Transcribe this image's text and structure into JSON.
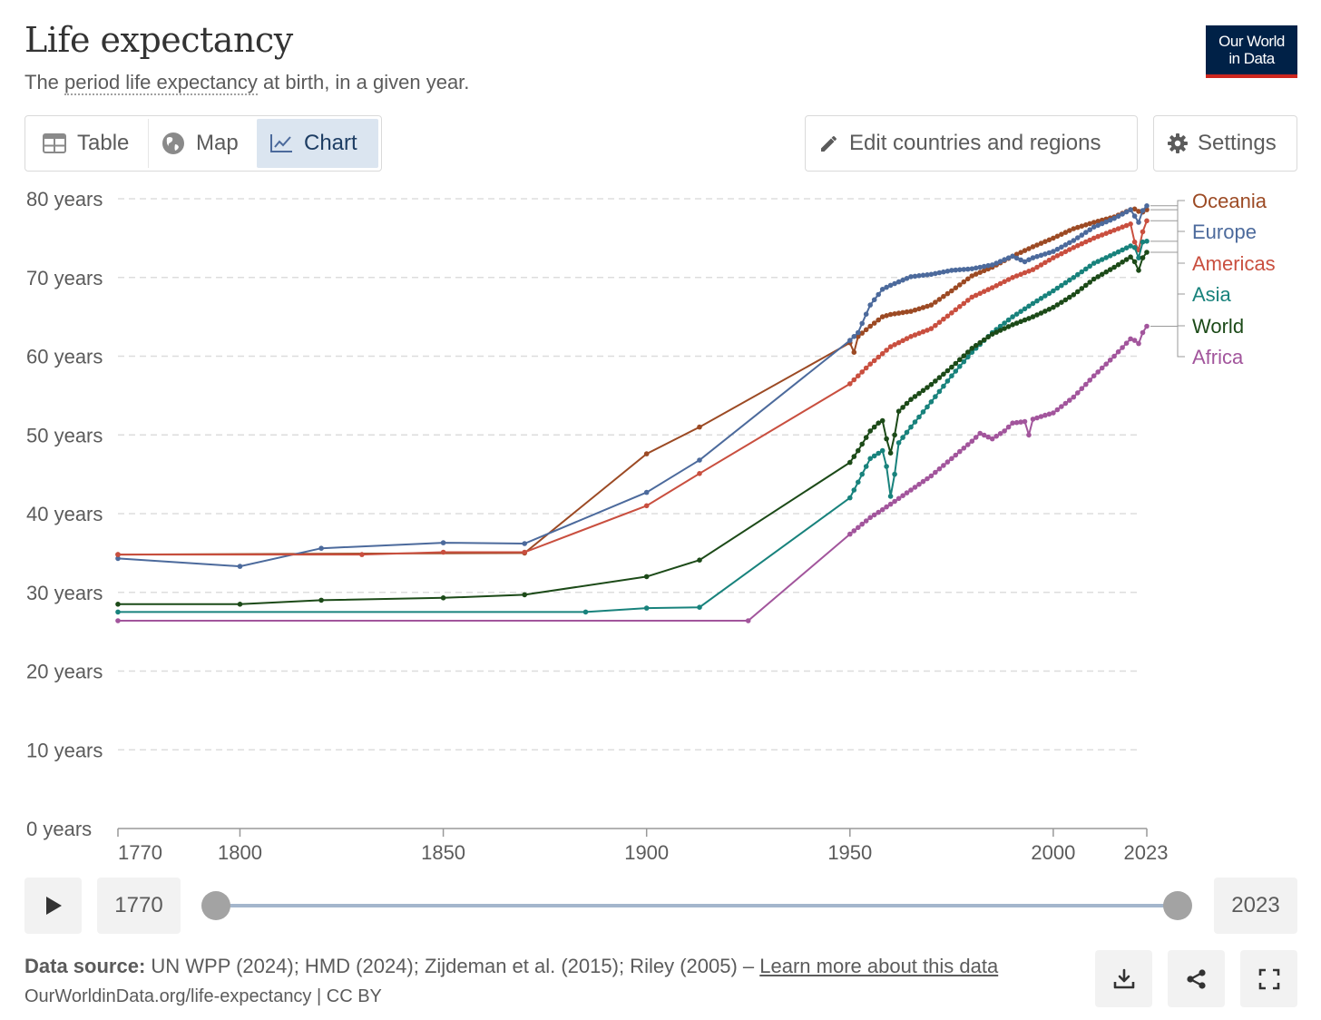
{
  "header": {
    "title": "Life expectancy",
    "subtitle_pre": "The ",
    "subtitle_link": "period life expectancy",
    "subtitle_post": " at birth, in a given year.",
    "logo_line1": "Our World",
    "logo_line2": "in Data"
  },
  "tabs": [
    {
      "label": "Table",
      "icon": "table-icon",
      "active": false
    },
    {
      "label": "Map",
      "icon": "globe-icon",
      "active": false
    },
    {
      "label": "Chart",
      "icon": "line-chart-icon",
      "active": true
    }
  ],
  "buttons": {
    "edit": "Edit countries and regions",
    "settings": "Settings"
  },
  "chart_data": {
    "type": "line",
    "title": "Life expectancy",
    "ylim": [
      0,
      80
    ],
    "xlim": [
      1770,
      2023
    ],
    "y_ticks": [
      {
        "value": 0,
        "label": "0 years"
      },
      {
        "value": 10,
        "label": "10 years"
      },
      {
        "value": 20,
        "label": "20 years"
      },
      {
        "value": 30,
        "label": "30 years"
      },
      {
        "value": 40,
        "label": "40 years"
      },
      {
        "value": 50,
        "label": "50 years"
      },
      {
        "value": 60,
        "label": "60 years"
      },
      {
        "value": 70,
        "label": "70 years"
      },
      {
        "value": 80,
        "label": "80 years"
      }
    ],
    "x_ticks": [
      {
        "value": 1770,
        "label": "1770"
      },
      {
        "value": 1800,
        "label": "1800"
      },
      {
        "value": 1850,
        "label": "1850"
      },
      {
        "value": 1900,
        "label": "1900"
      },
      {
        "value": 1950,
        "label": "1950"
      },
      {
        "value": 2000,
        "label": "2000"
      },
      {
        "value": 2023,
        "label": "2023"
      }
    ],
    "grid": "horizontal-dashed",
    "legend": "right (labels at line ends)",
    "series": [
      {
        "name": "Oceania",
        "color": "#9c4a24",
        "points": [
          [
            1770,
            34.8
          ],
          [
            1870,
            35
          ],
          [
            1900,
            47.6
          ],
          [
            1913,
            51
          ],
          [
            1950,
            61.7
          ],
          [
            1951,
            60.5
          ],
          [
            1952,
            62.5
          ],
          [
            1955,
            63.8
          ],
          [
            1958,
            65
          ],
          [
            1960,
            65.3
          ],
          [
            1965,
            65.7
          ],
          [
            1970,
            66.5
          ],
          [
            1975,
            68.3
          ],
          [
            1980,
            70.2
          ],
          [
            1985,
            71.3
          ],
          [
            1990,
            72.7
          ],
          [
            1995,
            73.9
          ],
          [
            2000,
            75
          ],
          [
            2005,
            76.2
          ],
          [
            2010,
            77
          ],
          [
            2015,
            77.7
          ],
          [
            2019,
            78.6
          ],
          [
            2020,
            78.7
          ],
          [
            2021,
            78.4
          ],
          [
            2022,
            78.3
          ],
          [
            2023,
            78.6
          ]
        ]
      },
      {
        "name": "Europe",
        "color": "#4c6a9c",
        "points": [
          [
            1770,
            34.3
          ],
          [
            1800,
            33.3
          ],
          [
            1820,
            35.6
          ],
          [
            1850,
            36.3
          ],
          [
            1870,
            36.2
          ],
          [
            1900,
            42.7
          ],
          [
            1913,
            46.8
          ],
          [
            1950,
            62
          ],
          [
            1952,
            63
          ],
          [
            1955,
            66.5
          ],
          [
            1958,
            68.5
          ],
          [
            1960,
            69
          ],
          [
            1965,
            70.1
          ],
          [
            1970,
            70.4
          ],
          [
            1975,
            70.9
          ],
          [
            1980,
            71.1
          ],
          [
            1985,
            71.6
          ],
          [
            1990,
            72.7
          ],
          [
            1993,
            72
          ],
          [
            1995,
            72.5
          ],
          [
            2000,
            73.3
          ],
          [
            2005,
            74.7
          ],
          [
            2010,
            76.4
          ],
          [
            2015,
            77.5
          ],
          [
            2019,
            78.6
          ],
          [
            2020,
            77.8
          ],
          [
            2021,
            77
          ],
          [
            2022,
            78.5
          ],
          [
            2023,
            79.1
          ]
        ]
      },
      {
        "name": "Americas",
        "color": "#c94f3f",
        "points": [
          [
            1770,
            34.8
          ],
          [
            1830,
            34.8
          ],
          [
            1850,
            35.1
          ],
          [
            1870,
            35.1
          ],
          [
            1900,
            41
          ],
          [
            1913,
            45.1
          ],
          [
            1950,
            56.5
          ],
          [
            1955,
            59
          ],
          [
            1960,
            61.2
          ],
          [
            1965,
            62.5
          ],
          [
            1970,
            63.5
          ],
          [
            1975,
            65.5
          ],
          [
            1980,
            67.5
          ],
          [
            1985,
            68.7
          ],
          [
            1990,
            70
          ],
          [
            1995,
            71
          ],
          [
            2000,
            72.5
          ],
          [
            2005,
            73.8
          ],
          [
            2010,
            75
          ],
          [
            2015,
            76
          ],
          [
            2019,
            76.8
          ],
          [
            2020,
            74.5
          ],
          [
            2021,
            73.5
          ],
          [
            2022,
            75.8
          ],
          [
            2023,
            77.2
          ]
        ]
      },
      {
        "name": "Asia",
        "color": "#18827c",
        "points": [
          [
            1770,
            27.5
          ],
          [
            1885,
            27.5
          ],
          [
            1900,
            28
          ],
          [
            1913,
            28.1
          ],
          [
            1950,
            42
          ],
          [
            1952,
            44
          ],
          [
            1955,
            47
          ],
          [
            1958,
            48
          ],
          [
            1959,
            46
          ],
          [
            1960,
            42.2
          ],
          [
            1961,
            45
          ],
          [
            1962,
            49
          ],
          [
            1965,
            51
          ],
          [
            1970,
            54.2
          ],
          [
            1975,
            57.5
          ],
          [
            1980,
            60.5
          ],
          [
            1985,
            63
          ],
          [
            1990,
            65
          ],
          [
            1995,
            66.7
          ],
          [
            2000,
            68.3
          ],
          [
            2005,
            70
          ],
          [
            2010,
            71.8
          ],
          [
            2015,
            73
          ],
          [
            2019,
            74
          ],
          [
            2020,
            73.8
          ],
          [
            2021,
            72.5
          ],
          [
            2022,
            74.5
          ],
          [
            2023,
            74.6
          ]
        ]
      },
      {
        "name": "World",
        "color": "#1c4a18",
        "points": [
          [
            1770,
            28.5
          ],
          [
            1800,
            28.5
          ],
          [
            1820,
            29
          ],
          [
            1850,
            29.3
          ],
          [
            1870,
            29.7
          ],
          [
            1900,
            32
          ],
          [
            1913,
            34.1
          ],
          [
            1950,
            46.5
          ],
          [
            1952,
            48
          ],
          [
            1955,
            50.5
          ],
          [
            1957,
            51.5
          ],
          [
            1958,
            51.8
          ],
          [
            1959,
            49.5
          ],
          [
            1960,
            47.7
          ],
          [
            1961,
            50
          ],
          [
            1962,
            53
          ],
          [
            1965,
            54.5
          ],
          [
            1970,
            56.4
          ],
          [
            1975,
            58.6
          ],
          [
            1980,
            61
          ],
          [
            1985,
            62.8
          ],
          [
            1990,
            64
          ],
          [
            1995,
            65
          ],
          [
            2000,
            66.2
          ],
          [
            2005,
            67.8
          ],
          [
            2010,
            69.8
          ],
          [
            2015,
            71.3
          ],
          [
            2019,
            72.6
          ],
          [
            2020,
            72
          ],
          [
            2021,
            70.9
          ],
          [
            2022,
            72.5
          ],
          [
            2023,
            73.2
          ]
        ]
      },
      {
        "name": "Africa",
        "color": "#a2559c",
        "points": [
          [
            1770,
            26.4
          ],
          [
            1925,
            26.4
          ],
          [
            1950,
            37.4
          ],
          [
            1955,
            39.5
          ],
          [
            1958,
            40.5
          ],
          [
            1960,
            41.2
          ],
          [
            1965,
            43
          ],
          [
            1970,
            44.8
          ],
          [
            1975,
            47
          ],
          [
            1980,
            49.2
          ],
          [
            1982,
            50.2
          ],
          [
            1985,
            49.5
          ],
          [
            1988,
            50.5
          ],
          [
            1990,
            51.5
          ],
          [
            1993,
            51.7
          ],
          [
            1994,
            50
          ],
          [
            1995,
            52
          ],
          [
            1998,
            52.5
          ],
          [
            2000,
            52.8
          ],
          [
            2005,
            54.8
          ],
          [
            2010,
            57.5
          ],
          [
            2015,
            60
          ],
          [
            2019,
            62.2
          ],
          [
            2020,
            62
          ],
          [
            2021,
            61.6
          ],
          [
            2022,
            63
          ],
          [
            2023,
            63.8
          ]
        ]
      }
    ]
  },
  "timeline": {
    "start_year": "1770",
    "end_year": "2023"
  },
  "footer": {
    "source_label": "Data source:",
    "source_text": " UN WPP (2024); HMD (2024); Zijdeman et al. (2015); Riley (2005) – ",
    "source_link": "Learn more about this data",
    "url": "OurWorldinData.org/life-expectancy | CC BY"
  }
}
